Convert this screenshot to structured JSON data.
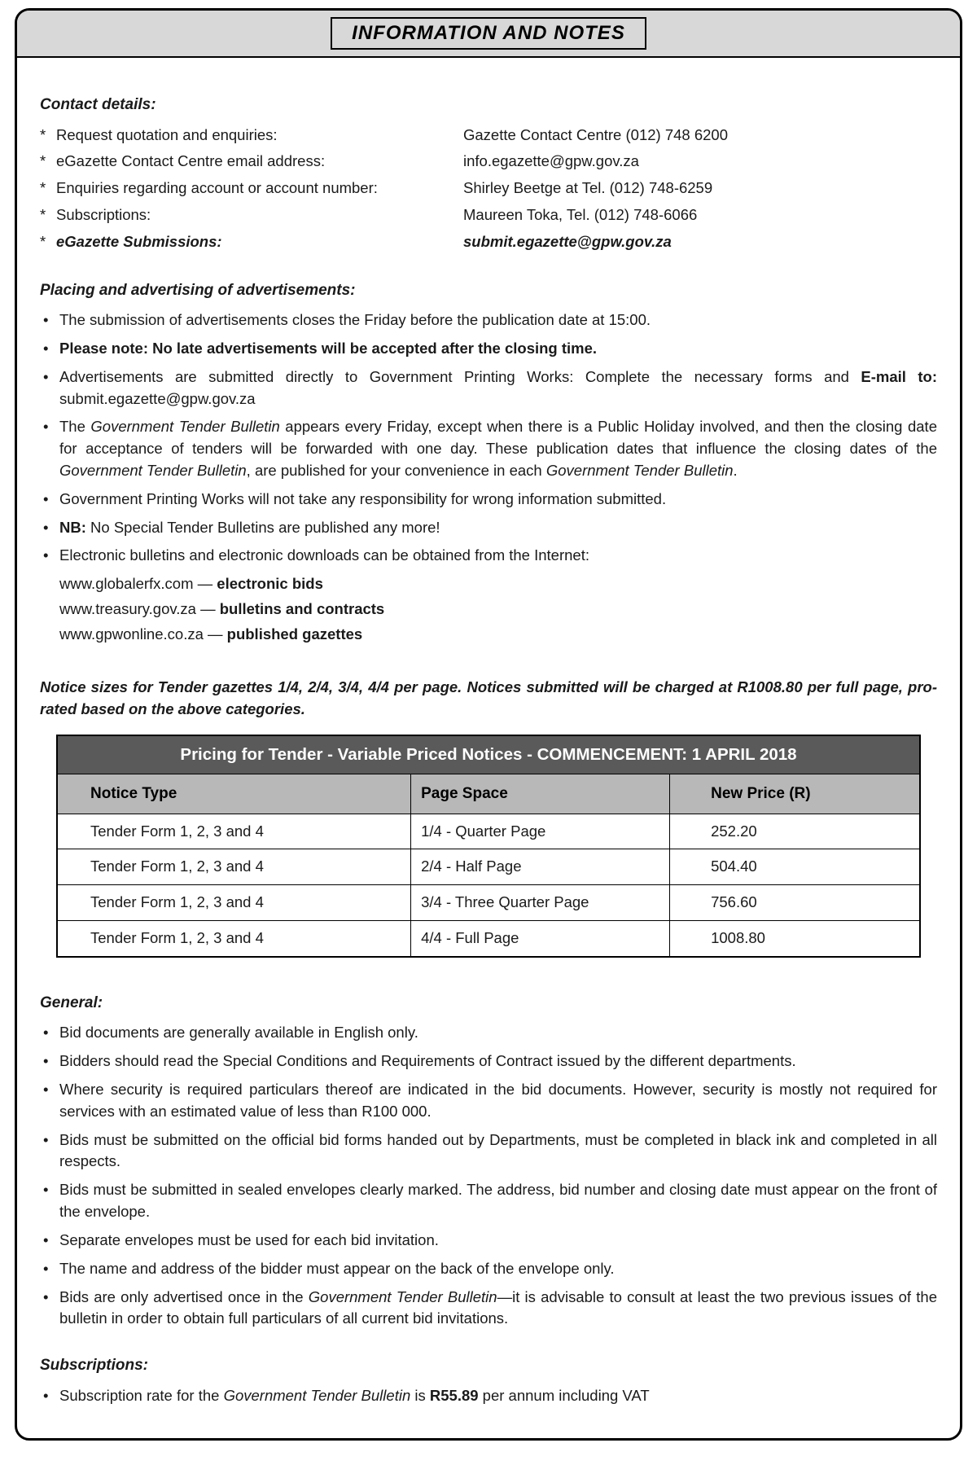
{
  "title": "INFORMATION AND NOTES",
  "contact": {
    "heading": "Contact details:",
    "rows": [
      {
        "label": "Request quotation and enquiries:",
        "value": "Gazette Contact Centre (012) 748 6200",
        "bold": false
      },
      {
        "label": "eGazette Contact Centre email address:",
        "value": "info.egazette@gpw.gov.za",
        "bold": false
      },
      {
        "label": "Enquiries regarding account or account number:",
        "value": "Shirley Beetge at Tel. (012) 748-6259",
        "bold": false
      },
      {
        "label": "Subscriptions:",
        "value": "Maureen Toka, Tel. (012) 748-6066",
        "bold": false
      },
      {
        "label": "eGazette Submissions:",
        "value": "submit.egazette@gpw.gov.za",
        "bold": true
      }
    ]
  },
  "placing": {
    "heading": "Placing and advertising of advertisements:",
    "items": [
      {
        "html": "The submission of advertisements closes the Friday before the publication date at 15:00."
      },
      {
        "html": "<span class='bold'>Please note: No late advertisements will be accepted after the closing time.</span>"
      },
      {
        "html": "Advertisements are submitted directly to Government Printing Works: Complete the necessary forms and <span class='bold'>E-mail to:</span> submit.egazette@gpw.gov.za"
      },
      {
        "html": "The <span class='ital'>Government Tender Bulletin</span> appears every Friday, except when there is a Public Holiday involved, and then the closing date for acceptance of tenders will be forwarded with one day. These publication dates that influence the closing dates of the <span class='ital'>Government Tender Bulletin</span>, are published for your convenience in each <span class='ital'>Government Tender Bulletin</span>."
      },
      {
        "html": "Government Printing Works will not take any responsibility for wrong information submitted."
      },
      {
        "html": "<span class='bold'>NB:</span> No Special Tender Bulletins are published any more!"
      },
      {
        "html": "Electronic bulletins and electronic downloads can be obtained from the Internet:"
      }
    ],
    "links": [
      {
        "url": "www.globalerfx.com",
        "desc": "electronic bids"
      },
      {
        "url": "www.treasury.gov.za",
        "desc": "bulletins and contracts"
      },
      {
        "url": "www.gpwonline.co.za",
        "desc": "published gazettes"
      }
    ]
  },
  "notice_sizes": "Notice sizes for Tender gazettes 1/4, 2/4, 3/4, 4/4 per page. Notices submitted will be charged at R1008.80 per full page, pro-rated based on the above categories.",
  "pricing": {
    "title": "Pricing for Tender - Variable Priced Notices - COMMENCEMENT: 1 APRIL 2018",
    "columns": [
      "Notice Type",
      "Page Space",
      "New Price (R)"
    ],
    "rows": [
      [
        "Tender Form 1, 2, 3 and 4",
        "1/4 - Quarter Page",
        "252.20"
      ],
      [
        "Tender Form 1, 2, 3 and 4",
        "2/4 - Half Page",
        "504.40"
      ],
      [
        "Tender Form 1, 2, 3 and 4",
        "3/4 - Three Quarter Page",
        "756.60"
      ],
      [
        "Tender Form 1, 2, 3 and 4",
        "4/4 - Full Page",
        "1008.80"
      ]
    ]
  },
  "general": {
    "heading": "General:",
    "items": [
      "Bid documents are generally available in English only.",
      "Bidders should read the Special Conditions and Requirements of Contract issued by the different departments.",
      "Where security is required particulars thereof are indicated in the bid documents. However, security is mostly not required for services with an estimated value of less than R100 000.",
      "Bids must be submitted on the official bid forms handed out by Departments, must be completed in black ink and completed in all respects.",
      "Bids must be submitted in sealed envelopes clearly marked. The address, bid number and closing date must appear on the front of the envelope.",
      "Separate envelopes must be used for each bid invitation.",
      "The name and address of the bidder must appear on the back of the envelope only.",
      "Bids are only advertised once in the <span class='ital'>Government Tender Bulletin</span>—it is advisable to consult at least the two previous issues of the bulletin in order to obtain full particulars of all current bid invitations."
    ]
  },
  "subscriptions": {
    "heading": "Subscriptions:",
    "items": [
      "Subscription rate for the <span class='ital'>Government Tender Bulletin</span> is <span class='bold'>R55.89</span> per annum including VAT"
    ]
  }
}
